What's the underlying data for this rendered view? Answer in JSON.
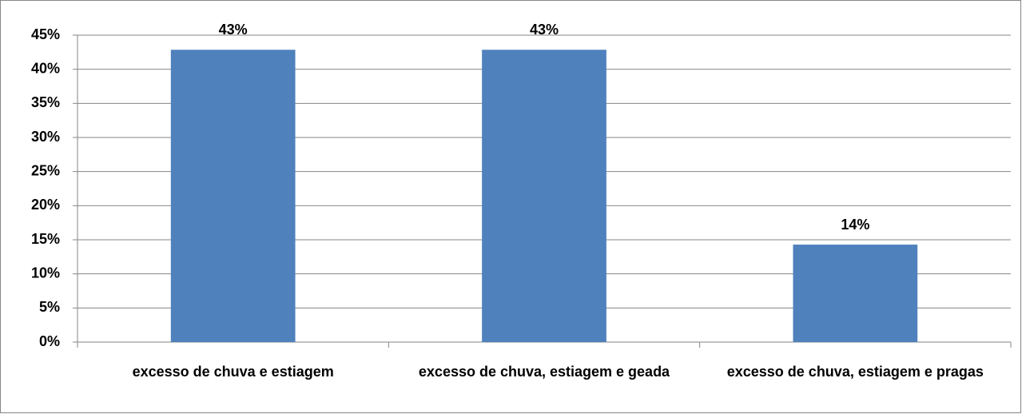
{
  "chart_data": {
    "type": "bar",
    "categories": [
      "excesso de chuva e estiagem",
      "excesso de chuva, estiagem e geada",
      "excesso de chuva, estiagem e pragas"
    ],
    "values": [
      42.86,
      42.86,
      14.29
    ],
    "value_labels": [
      "43%",
      "43%",
      "14%"
    ],
    "color": "#4f81bd",
    "ylim": [
      0,
      45
    ],
    "yticks": [
      {
        "value": 0,
        "label": "0%"
      },
      {
        "value": 5,
        "label": "5%"
      },
      {
        "value": 10,
        "label": "10%"
      },
      {
        "value": 15,
        "label": "15%"
      },
      {
        "value": 20,
        "label": "20%"
      },
      {
        "value": 25,
        "label": "25%"
      },
      {
        "value": 30,
        "label": "30%"
      },
      {
        "value": 35,
        "label": "35%"
      },
      {
        "value": 40,
        "label": "40%"
      },
      {
        "value": 45,
        "label": "45%"
      }
    ],
    "grid": true
  }
}
